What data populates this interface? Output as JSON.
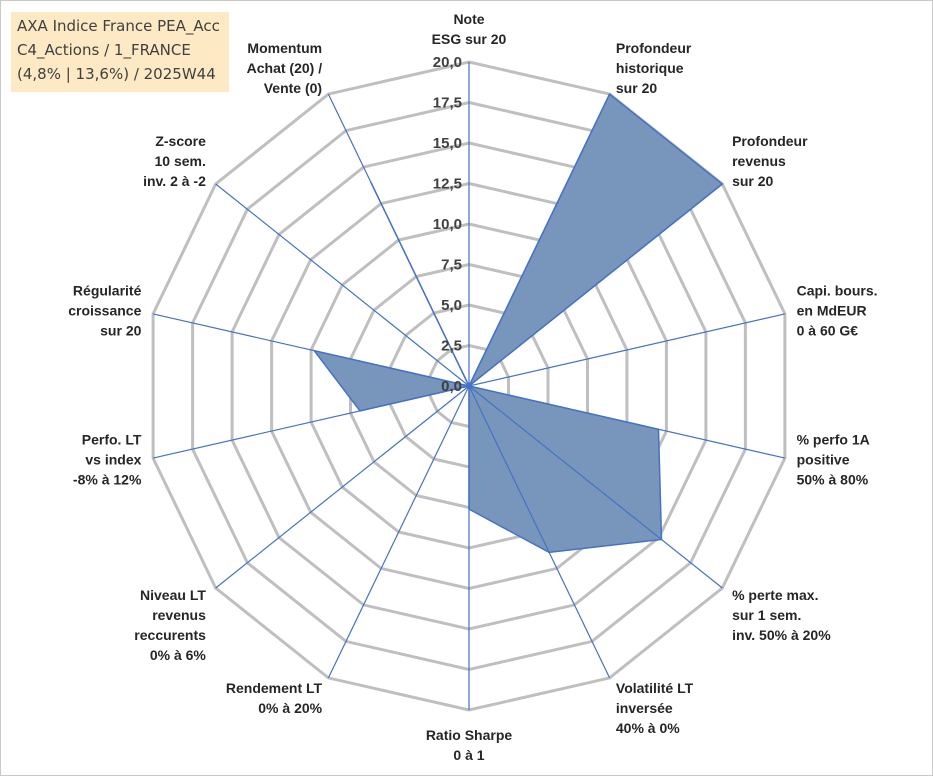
{
  "title_box": {
    "line1": "AXA Indice France PEA_Acc",
    "line2": "C4_Actions / 1_FRANCE",
    "line3": "(4,8% | 13,6%) / 2025W44"
  },
  "chart_data": {
    "type": "radar",
    "title": "AXA Indice France PEA_Acc C4_Actions / 1_FRANCE (4,8% | 13,6%) / 2025W44",
    "rmin": 0,
    "rmax": 20,
    "ticks": [
      "0,0",
      "2,5",
      "5,0",
      "7,5",
      "10,0",
      "12,5",
      "15,0",
      "17,5",
      "20,0"
    ],
    "categories": [
      [
        "Note",
        "ESG sur 20"
      ],
      [
        "Profondeur",
        "historique",
        "sur 20"
      ],
      [
        "Profondeur",
        "revenus",
        "sur 20"
      ],
      [
        "Capi. bours.",
        "en MdEUR",
        "0 à 60 G€"
      ],
      [
        "% perfo 1A",
        "positive",
        "50% à 80%"
      ],
      [
        "% perte max.",
        "sur 1 sem.",
        "inv. 50% à 20%"
      ],
      [
        "Volatilité LT",
        "inversée",
        "40% à 0%"
      ],
      [
        "Ratio Sharpe",
        "0 à 1"
      ],
      [
        "Rendement LT",
        "0% à 20%"
      ],
      [
        "Niveau LT",
        "revenus",
        "reccurents",
        "0% à 6%"
      ],
      [
        "Perfo. LT",
        "vs index",
        "-8% à 12%"
      ],
      [
        "Régularité",
        "croissance",
        "sur 20"
      ],
      [
        "Z-score",
        "10 sem.",
        "inv. 2 à -2"
      ],
      [
        "Momentum",
        "Achat (20) /",
        "Vente (0)"
      ]
    ],
    "values": [
      0,
      20,
      20,
      0,
      12.0,
      15.2,
      11.4,
      7.6,
      0,
      0,
      6.9,
      9.8,
      0,
      14.0
    ],
    "colors": {
      "fill": "#7896bc",
      "outline": "#4472c4",
      "spoke": "#4472c4",
      "grid": "#bfbfbf"
    },
    "grid": true,
    "legend": "none"
  }
}
